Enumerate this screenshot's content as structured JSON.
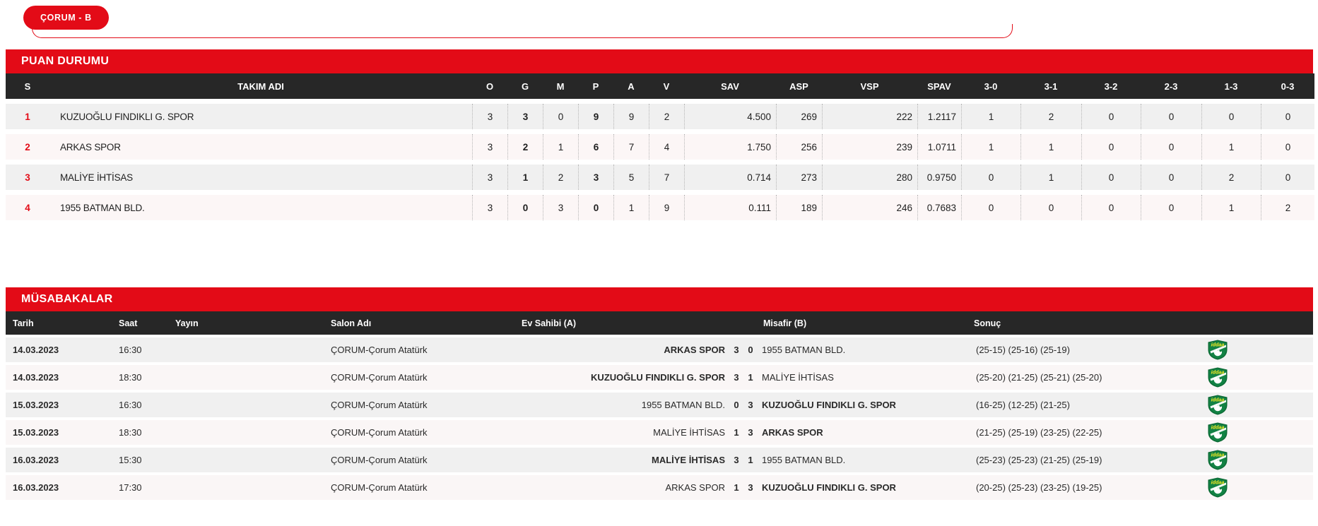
{
  "page": {
    "tab_label": "ÇORUM - B"
  },
  "colors": {
    "accent_red": "#e30b17",
    "header_dark": "#272727",
    "row_gray": "#f0f0f0",
    "row_light": "#fcf6f6",
    "iddaa_green": "#128244",
    "iddaa_yellow": "#f6e924"
  },
  "standings": {
    "title": "PUAN DURUMU",
    "columns": [
      "S",
      "TAKIM ADI",
      "O",
      "G",
      "M",
      "P",
      "A",
      "V",
      "SAV",
      "ASP",
      "VSP",
      "SPAV",
      "3-0",
      "3-1",
      "3-2",
      "2-3",
      "1-3",
      "0-3"
    ],
    "rows": [
      {
        "rank": "1",
        "team": "KUZUOĞLU FINDIKLI G. SPOR",
        "o": "3",
        "g": "3",
        "m": "0",
        "p": "9",
        "a": "9",
        "v": "2",
        "sav": "4.500",
        "asp": "269",
        "vsp": "222",
        "spav": "1.2117",
        "s30": "1",
        "s31": "2",
        "s32": "0",
        "s23": "0",
        "s13": "0",
        "s03": "0"
      },
      {
        "rank": "2",
        "team": "ARKAS SPOR",
        "o": "3",
        "g": "2",
        "m": "1",
        "p": "6",
        "a": "7",
        "v": "4",
        "sav": "1.750",
        "asp": "256",
        "vsp": "239",
        "spav": "1.0711",
        "s30": "1",
        "s31": "1",
        "s32": "0",
        "s23": "0",
        "s13": "1",
        "s03": "0"
      },
      {
        "rank": "3",
        "team": "MALİYE İHTİSAS",
        "o": "3",
        "g": "1",
        "m": "2",
        "p": "3",
        "a": "5",
        "v": "7",
        "sav": "0.714",
        "asp": "273",
        "vsp": "280",
        "spav": "0.9750",
        "s30": "0",
        "s31": "1",
        "s32": "0",
        "s23": "0",
        "s13": "2",
        "s03": "0"
      },
      {
        "rank": "4",
        "team": "1955 BATMAN BLD.",
        "o": "3",
        "g": "0",
        "m": "3",
        "p": "0",
        "a": "1",
        "v": "9",
        "sav": "0.111",
        "asp": "189",
        "vsp": "246",
        "spav": "0.7683",
        "s30": "0",
        "s31": "0",
        "s32": "0",
        "s23": "0",
        "s13": "1",
        "s03": "2"
      }
    ]
  },
  "matches": {
    "title": "MÜSABAKALAR",
    "columns": [
      "Tarih",
      "Saat",
      "Yayın",
      "Salon Adı",
      "Ev Sahibi (A)",
      "Misafir (B)",
      "Sonuç"
    ],
    "betting_logo": "iddaa",
    "rows": [
      {
        "date": "14.03.2023",
        "time": "16:30",
        "broadcast": "",
        "venue": "ÇORUM-Çorum Atatürk",
        "home": "ARKAS SPOR",
        "score_home": "3",
        "score_away": "0",
        "away": "1955 BATMAN BLD.",
        "winner": "home",
        "result": "(25-15) (25-16) (25-19)"
      },
      {
        "date": "14.03.2023",
        "time": "18:30",
        "broadcast": "",
        "venue": "ÇORUM-Çorum Atatürk",
        "home": "KUZUOĞLU FINDIKLI G. SPOR",
        "score_home": "3",
        "score_away": "1",
        "away": "MALİYE İHTİSAS",
        "winner": "home",
        "result": "(25-20) (21-25) (25-21) (25-20)"
      },
      {
        "date": "15.03.2023",
        "time": "16:30",
        "broadcast": "",
        "venue": "ÇORUM-Çorum Atatürk",
        "home": "1955 BATMAN BLD.",
        "score_home": "0",
        "score_away": "3",
        "away": "KUZUOĞLU FINDIKLI G. SPOR",
        "winner": "away",
        "result": "(16-25) (12-25) (21-25)"
      },
      {
        "date": "15.03.2023",
        "time": "18:30",
        "broadcast": "",
        "venue": "ÇORUM-Çorum Atatürk",
        "home": "MALİYE İHTİSAS",
        "score_home": "1",
        "score_away": "3",
        "away": "ARKAS SPOR",
        "winner": "away",
        "result": "(21-25) (25-19) (23-25) (22-25)"
      },
      {
        "date": "16.03.2023",
        "time": "15:30",
        "broadcast": "",
        "venue": "ÇORUM-Çorum Atatürk",
        "home": "MALİYE İHTİSAS",
        "score_home": "3",
        "score_away": "1",
        "away": "1955 BATMAN BLD.",
        "winner": "home",
        "result": "(25-23) (25-23) (21-25) (25-19)"
      },
      {
        "date": "16.03.2023",
        "time": "17:30",
        "broadcast": "",
        "venue": "ÇORUM-Çorum Atatürk",
        "home": "ARKAS SPOR",
        "score_home": "1",
        "score_away": "3",
        "away": "KUZUOĞLU FINDIKLI G. SPOR",
        "winner": "away",
        "result": "(20-25) (25-23) (23-25) (19-25)"
      }
    ]
  }
}
